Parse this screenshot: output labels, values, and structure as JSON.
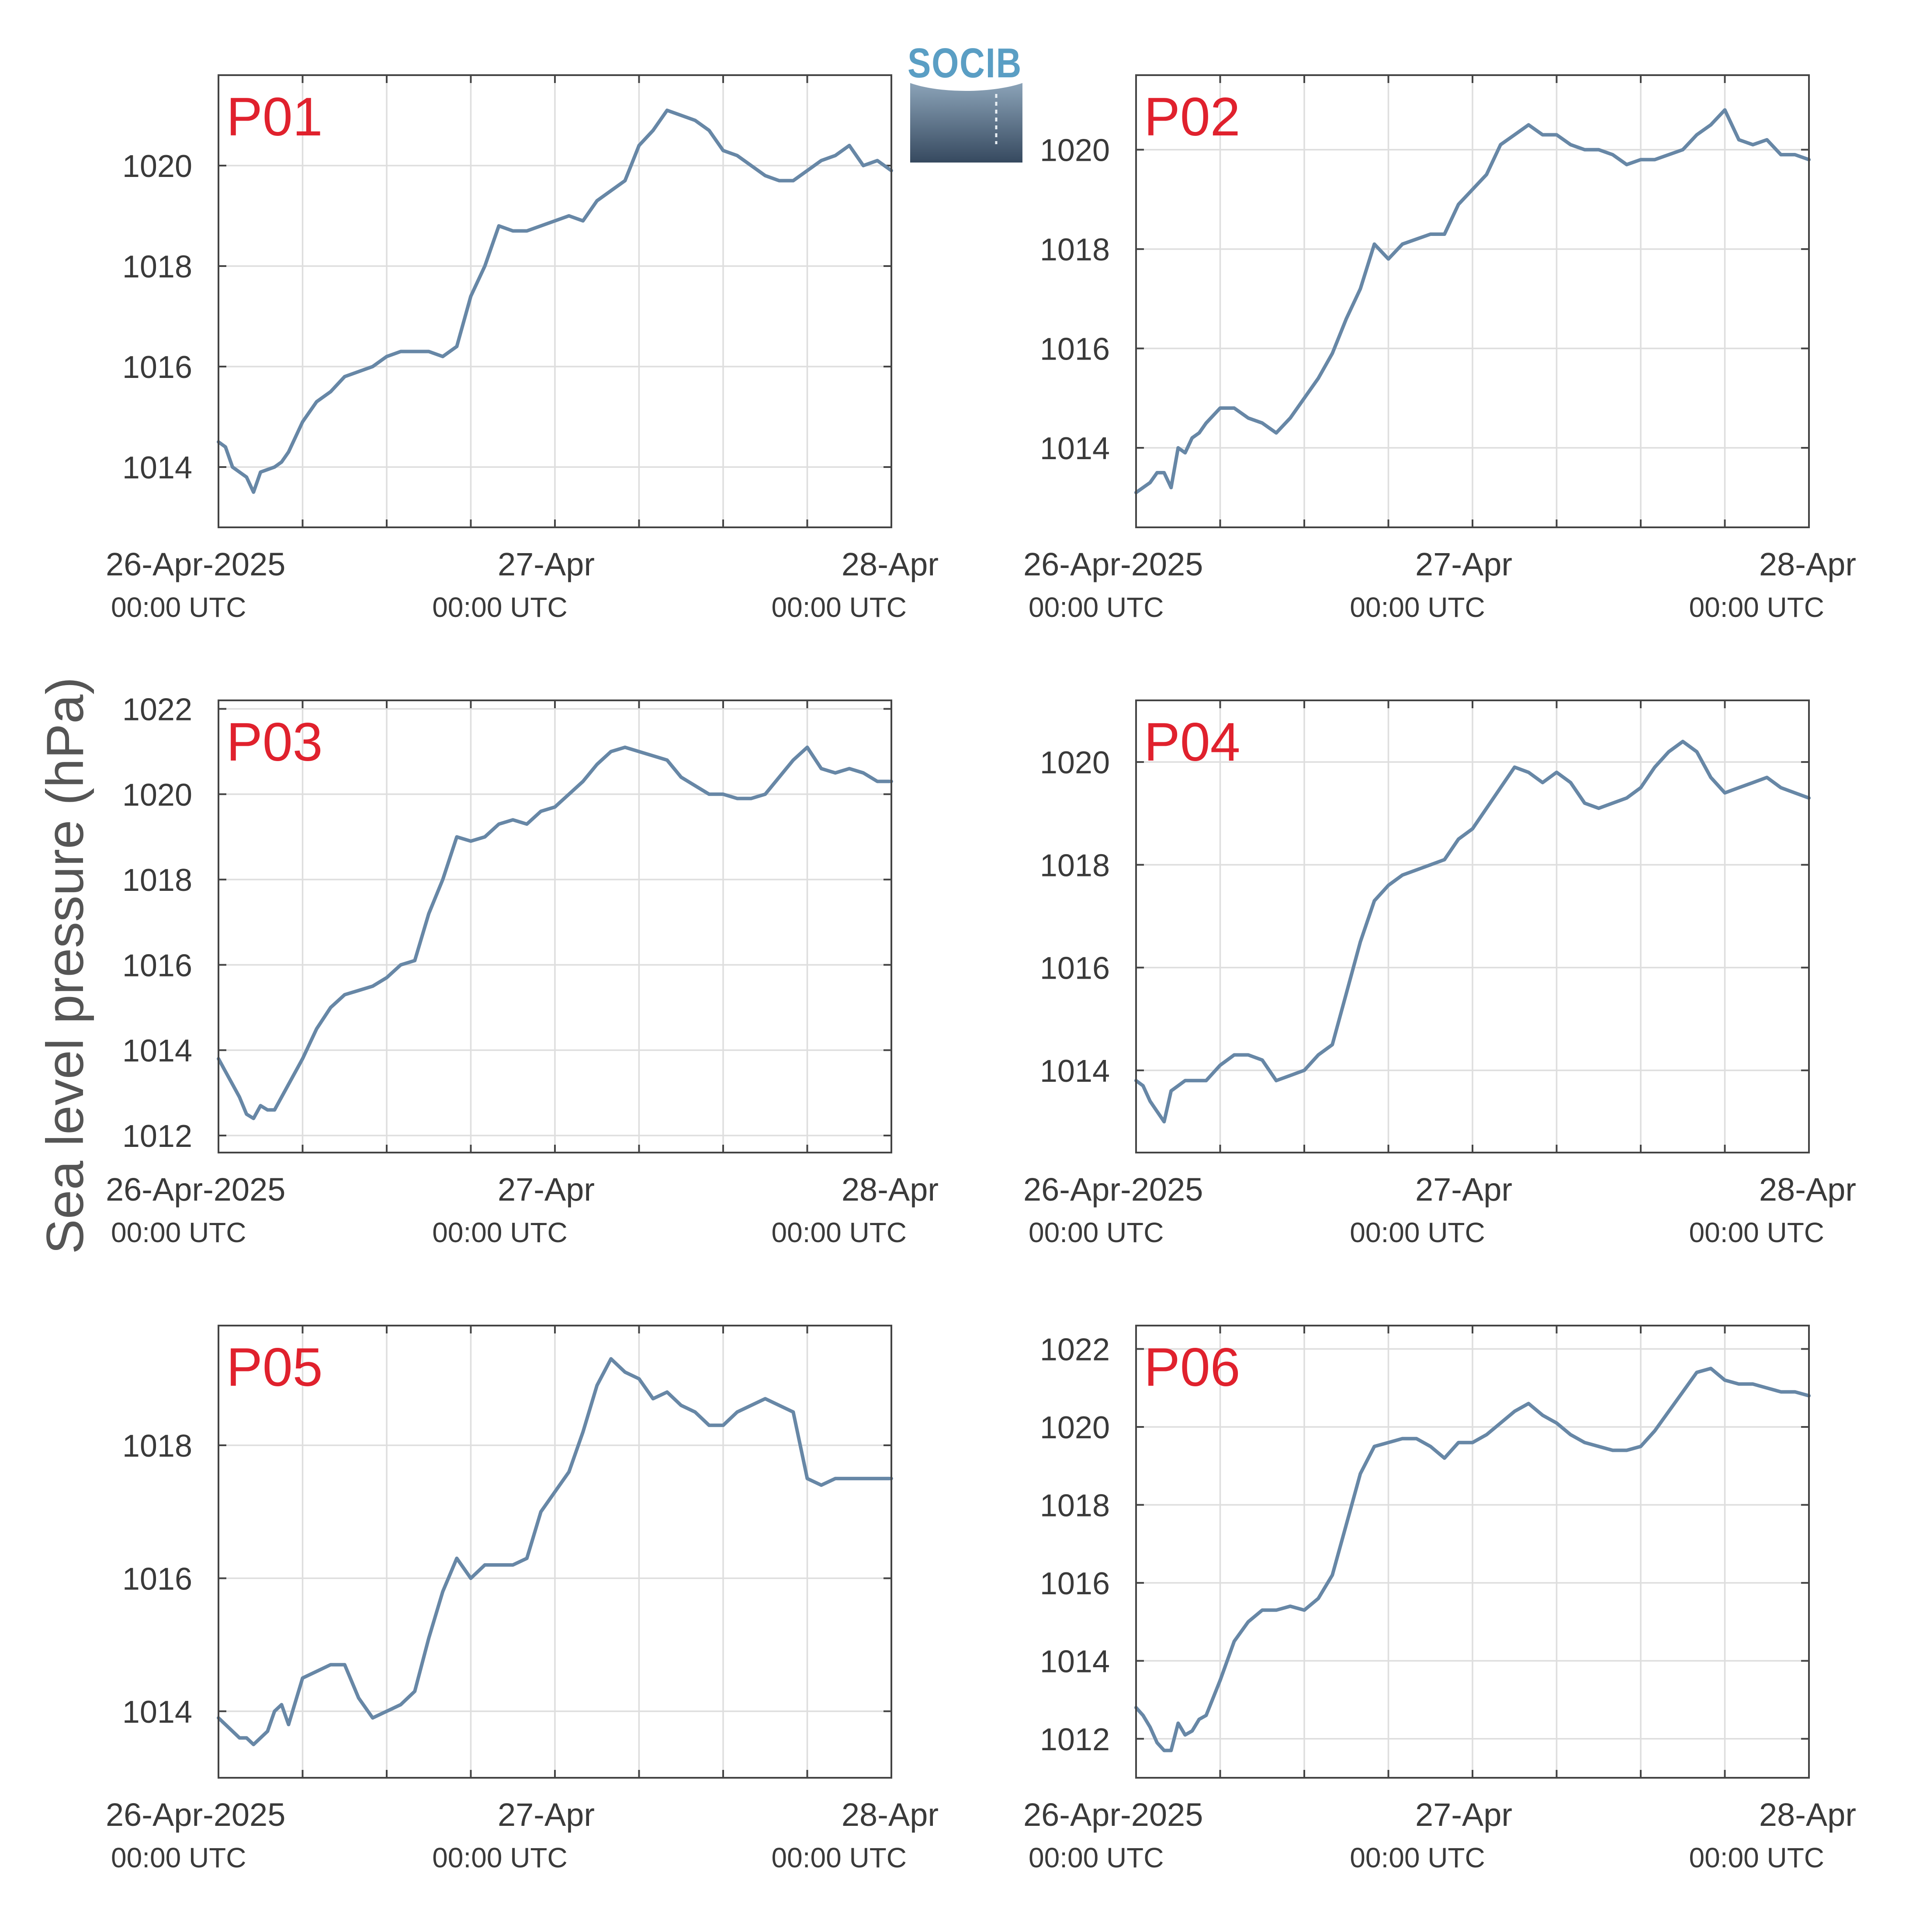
{
  "figure": {
    "ylabel": "Sea level pressure (hPa)",
    "logo_text": "SOCIB",
    "x_tick_labels": [
      {
        "date": "26-Apr-2025",
        "time": "00:00 UTC"
      },
      {
        "date": "27-Apr",
        "time": "00:00 UTC"
      },
      {
        "date": "28-Apr",
        "time": "00:00 UTC"
      }
    ]
  },
  "colors": {
    "series": "#6787a6",
    "panel_title": "#e0212d",
    "logo": "#5a9ec4"
  },
  "chart_data": [
    {
      "type": "line",
      "title": "P01",
      "x_unit": "hours since 26-Apr-2025 00:00 UTC",
      "xlim": [
        0,
        48
      ],
      "ylim": [
        1012.8,
        1021.8
      ],
      "yticks": [
        1014,
        1016,
        1018,
        1020
      ],
      "x": [
        0,
        0.5,
        1,
        1.5,
        2,
        2.5,
        3,
        3.5,
        4,
        4.5,
        5,
        6,
        7,
        8,
        9,
        10,
        11,
        12,
        13,
        14,
        15,
        16,
        17,
        18,
        19,
        20,
        21,
        22,
        23,
        24,
        25,
        26,
        27,
        28,
        29,
        30,
        31,
        32,
        33,
        34,
        35,
        36,
        37,
        38,
        39,
        40,
        41,
        42,
        43,
        44,
        45,
        46,
        47,
        48
      ],
      "values": [
        1014.5,
        1014.4,
        1014.0,
        1013.9,
        1013.8,
        1013.5,
        1013.9,
        1013.95,
        1014.0,
        1014.1,
        1014.3,
        1014.9,
        1015.3,
        1015.5,
        1015.8,
        1015.9,
        1016.0,
        1016.2,
        1016.3,
        1016.3,
        1016.3,
        1016.2,
        1016.4,
        1017.4,
        1018.0,
        1018.8,
        1018.7,
        1018.7,
        1018.8,
        1018.9,
        1019.0,
        1018.9,
        1019.3,
        1019.5,
        1019.7,
        1020.4,
        1020.7,
        1021.1,
        1021.0,
        1020.9,
        1020.7,
        1020.3,
        1020.2,
        1020.0,
        1019.8,
        1019.7,
        1019.7,
        1019.9,
        1020.1,
        1020.2,
        1020.4,
        1020.0,
        1020.1,
        1019.9
      ]
    },
    {
      "type": "line",
      "title": "P02",
      "x_unit": "hours since 26-Apr-2025 00:00 UTC",
      "xlim": [
        0,
        48
      ],
      "ylim": [
        1012.4,
        1021.5
      ],
      "yticks": [
        1014,
        1016,
        1018,
        1020
      ],
      "x": [
        0,
        0.5,
        1,
        1.5,
        2,
        2.5,
        3,
        3.5,
        4,
        4.5,
        5,
        6,
        7,
        8,
        9,
        10,
        11,
        12,
        13,
        14,
        15,
        16,
        17,
        18,
        19,
        20,
        21,
        22,
        23,
        24,
        25,
        26,
        27,
        28,
        29,
        30,
        31,
        32,
        33,
        34,
        35,
        36,
        37,
        38,
        39,
        40,
        41,
        42,
        43,
        44,
        45,
        46,
        47,
        48
      ],
      "values": [
        1013.1,
        1013.2,
        1013.3,
        1013.5,
        1013.5,
        1013.2,
        1014.0,
        1013.9,
        1014.2,
        1014.3,
        1014.5,
        1014.8,
        1014.8,
        1014.6,
        1014.5,
        1014.3,
        1014.6,
        1015.0,
        1015.4,
        1015.9,
        1016.6,
        1017.2,
        1018.1,
        1017.8,
        1018.1,
        1018.2,
        1018.3,
        1018.3,
        1018.9,
        1019.2,
        1019.5,
        1020.1,
        1020.3,
        1020.5,
        1020.3,
        1020.3,
        1020.1,
        1020.0,
        1020.0,
        1019.9,
        1019.7,
        1019.8,
        1019.8,
        1019.9,
        1020.0,
        1020.3,
        1020.5,
        1020.8,
        1020.2,
        1020.1,
        1020.2,
        1019.9,
        1019.9,
        1019.8
      ]
    },
    {
      "type": "line",
      "title": "P03",
      "x_unit": "hours since 26-Apr-2025 00:00 UTC",
      "xlim": [
        0,
        48
      ],
      "ylim": [
        1011.6,
        1022.2
      ],
      "yticks": [
        1012,
        1014,
        1016,
        1018,
        1020,
        1022
      ],
      "x": [
        0,
        0.5,
        1,
        1.5,
        2,
        2.5,
        3,
        3.5,
        4,
        4.5,
        5,
        6,
        7,
        8,
        9,
        10,
        11,
        12,
        13,
        14,
        15,
        16,
        17,
        18,
        19,
        20,
        21,
        22,
        23,
        24,
        25,
        26,
        27,
        28,
        29,
        30,
        31,
        32,
        33,
        34,
        35,
        36,
        37,
        38,
        39,
        40,
        41,
        42,
        43,
        44,
        45,
        46,
        47,
        48
      ],
      "values": [
        1013.8,
        1013.5,
        1013.2,
        1012.9,
        1012.5,
        1012.4,
        1012.7,
        1012.6,
        1012.6,
        1012.9,
        1013.2,
        1013.8,
        1014.5,
        1015.0,
        1015.3,
        1015.4,
        1015.5,
        1015.7,
        1016.0,
        1016.1,
        1017.2,
        1018.0,
        1019.0,
        1018.9,
        1019.0,
        1019.3,
        1019.4,
        1019.3,
        1019.6,
        1019.7,
        1020.0,
        1020.3,
        1020.7,
        1021.0,
        1021.1,
        1021.0,
        1020.9,
        1020.8,
        1020.4,
        1020.2,
        1020.0,
        1020.0,
        1019.9,
        1019.9,
        1020.0,
        1020.4,
        1020.8,
        1021.1,
        1020.6,
        1020.5,
        1020.6,
        1020.5,
        1020.3,
        1020.3
      ]
    },
    {
      "type": "line",
      "title": "P04",
      "x_unit": "hours since 26-Apr-2025 00:00 UTC",
      "xlim": [
        0,
        48
      ],
      "ylim": [
        1012.4,
        1021.2
      ],
      "yticks": [
        1014,
        1016,
        1018,
        1020
      ],
      "x": [
        0,
        0.5,
        1,
        1.5,
        2,
        2.5,
        3,
        3.5,
        4,
        4.5,
        5,
        6,
        7,
        8,
        9,
        10,
        11,
        12,
        13,
        14,
        15,
        16,
        17,
        18,
        19,
        20,
        21,
        22,
        23,
        24,
        25,
        26,
        27,
        28,
        29,
        30,
        31,
        32,
        33,
        34,
        35,
        36,
        37,
        38,
        39,
        40,
        41,
        42,
        43,
        44,
        45,
        46,
        47,
        48
      ],
      "values": [
        1013.8,
        1013.7,
        1013.4,
        1013.2,
        1013.0,
        1013.6,
        1013.7,
        1013.8,
        1013.8,
        1013.8,
        1013.8,
        1014.1,
        1014.3,
        1014.3,
        1014.2,
        1013.8,
        1013.9,
        1014.0,
        1014.3,
        1014.5,
        1015.5,
        1016.5,
        1017.3,
        1017.6,
        1017.8,
        1017.9,
        1018.0,
        1018.1,
        1018.5,
        1018.7,
        1019.1,
        1019.5,
        1019.9,
        1019.8,
        1019.6,
        1019.8,
        1019.6,
        1019.2,
        1019.1,
        1019.2,
        1019.3,
        1019.5,
        1019.9,
        1020.2,
        1020.4,
        1020.2,
        1019.7,
        1019.4,
        1019.5,
        1019.6,
        1019.7,
        1019.5,
        1019.4,
        1019.3
      ]
    },
    {
      "type": "line",
      "title": "P05",
      "x_unit": "hours since 26-Apr-2025 00:00 UTC",
      "xlim": [
        0,
        48
      ],
      "ylim": [
        1013.0,
        1019.8
      ],
      "yticks": [
        1014,
        1016,
        1018
      ],
      "x": [
        0,
        0.5,
        1,
        1.5,
        2,
        2.5,
        3,
        3.5,
        4,
        4.5,
        5,
        6,
        7,
        8,
        9,
        10,
        11,
        12,
        13,
        14,
        15,
        16,
        17,
        18,
        19,
        20,
        21,
        22,
        23,
        24,
        25,
        26,
        27,
        28,
        29,
        30,
        31,
        32,
        33,
        34,
        35,
        36,
        37,
        38,
        39,
        40,
        41,
        42,
        43,
        44,
        45,
        46,
        47,
        48
      ],
      "values": [
        1013.9,
        1013.8,
        1013.7,
        1013.6,
        1013.6,
        1013.5,
        1013.6,
        1013.7,
        1014.0,
        1014.1,
        1013.8,
        1014.5,
        1014.6,
        1014.7,
        1014.7,
        1014.2,
        1013.9,
        1014.0,
        1014.1,
        1014.3,
        1015.1,
        1015.8,
        1016.3,
        1016.0,
        1016.2,
        1016.2,
        1016.2,
        1016.3,
        1017.0,
        1017.3,
        1017.6,
        1018.2,
        1018.9,
        1019.3,
        1019.1,
        1019.0,
        1018.7,
        1018.8,
        1018.6,
        1018.5,
        1018.3,
        1018.3,
        1018.5,
        1018.6,
        1018.7,
        1018.6,
        1018.5,
        1017.5,
        1017.4,
        1017.5,
        1017.5,
        1017.5,
        1017.5,
        1017.5
      ]
    },
    {
      "type": "line",
      "title": "P06",
      "x_unit": "hours since 26-Apr-2025 00:00 UTC",
      "xlim": [
        0,
        48
      ],
      "ylim": [
        1011.0,
        1022.6
      ],
      "yticks": [
        1012,
        1014,
        1016,
        1018,
        1020,
        1022
      ],
      "x": [
        0,
        0.5,
        1,
        1.5,
        2,
        2.5,
        3,
        3.5,
        4,
        4.5,
        5,
        6,
        7,
        8,
        9,
        10,
        11,
        12,
        13,
        14,
        15,
        16,
        17,
        18,
        19,
        20,
        21,
        22,
        23,
        24,
        25,
        26,
        27,
        28,
        29,
        30,
        31,
        32,
        33,
        34,
        35,
        36,
        37,
        38,
        39,
        40,
        41,
        42,
        43,
        44,
        45,
        46,
        47,
        48
      ],
      "values": [
        1012.8,
        1012.6,
        1012.3,
        1011.9,
        1011.7,
        1011.7,
        1012.4,
        1012.1,
        1012.2,
        1012.5,
        1012.6,
        1013.5,
        1014.5,
        1015.0,
        1015.3,
        1015.3,
        1015.4,
        1015.3,
        1015.6,
        1016.2,
        1017.5,
        1018.8,
        1019.5,
        1019.6,
        1019.7,
        1019.7,
        1019.5,
        1019.2,
        1019.6,
        1019.6,
        1019.8,
        1020.1,
        1020.4,
        1020.6,
        1020.3,
        1020.1,
        1019.8,
        1019.6,
        1019.5,
        1019.4,
        1019.4,
        1019.5,
        1019.9,
        1020.4,
        1020.9,
        1021.4,
        1021.5,
        1021.2,
        1021.1,
        1021.1,
        1021.0,
        1020.9,
        1020.9,
        1020.8
      ]
    }
  ]
}
